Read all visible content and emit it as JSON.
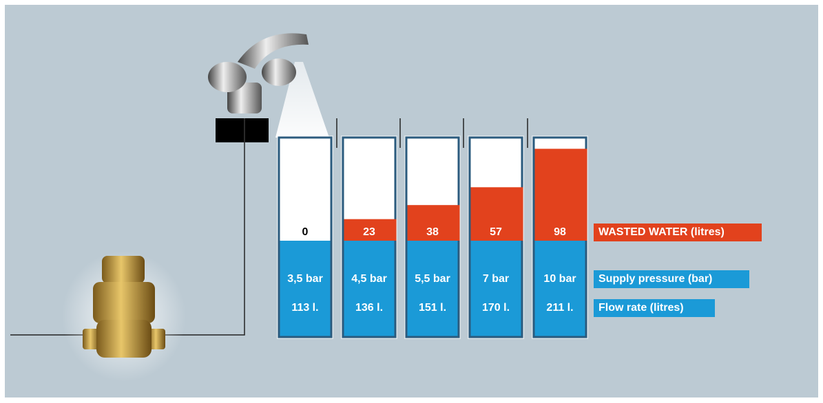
{
  "chart_data": {
    "type": "bar",
    "categories": [
      "3,5 bar",
      "4,5 bar",
      "5,5 bar",
      "7 bar",
      "10 bar"
    ],
    "category_title": "Supply pressure (bar)",
    "flow_rate_title": "Flow rate (litres)",
    "flow_rate_labels": [
      "113 l.",
      "136 l.",
      "151 l.",
      "170 l.",
      "211 l."
    ],
    "series": [
      {
        "name": "WASTED WATER (litres)",
        "color": "#e2421d",
        "values": [
          0,
          23,
          38,
          57,
          98
        ]
      }
    ],
    "ylim": [
      0,
      110
    ]
  }
}
